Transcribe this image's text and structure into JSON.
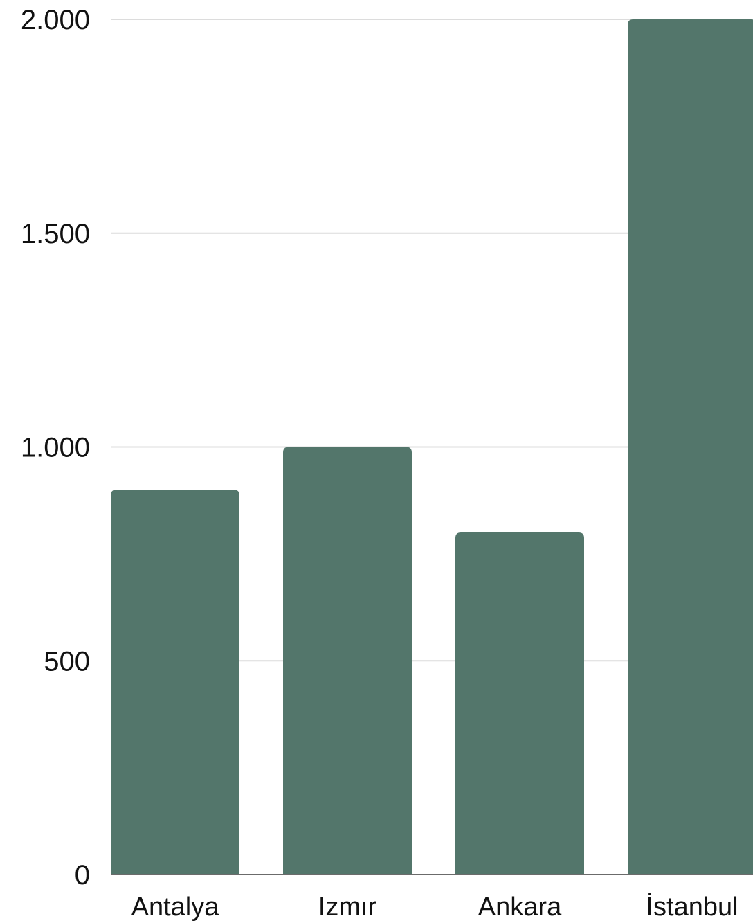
{
  "chart_data": {
    "type": "bar",
    "title": "",
    "xlabel": "",
    "ylabel": "",
    "categories": [
      "Antalya",
      "Izmır",
      "Ankara",
      "İstanbul"
    ],
    "values": [
      900,
      1000,
      800,
      2000
    ],
    "ylim": [
      0,
      2000
    ],
    "yticks": [
      {
        "value": 0,
        "label": "0"
      },
      {
        "value": 500,
        "label": "500"
      },
      {
        "value": 1000,
        "label": "1.000"
      },
      {
        "value": 1500,
        "label": "1.500"
      },
      {
        "value": 2000,
        "label": "2.000"
      }
    ],
    "grid": true,
    "legend": "none",
    "colors": {
      "bar": "#53766B",
      "grid": "#dcdcdc",
      "axis": "#6b6b6b",
      "text": "#111111"
    }
  }
}
